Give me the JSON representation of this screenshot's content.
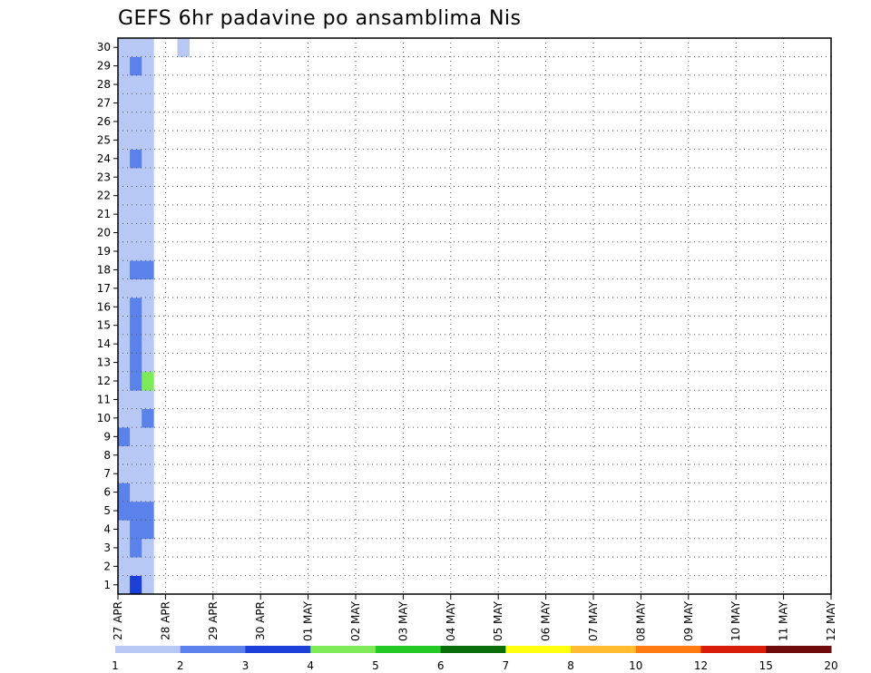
{
  "chart_data": {
    "type": "heatmap",
    "title": "GEFS 6hr padavine po ansamblima Nis",
    "xlabel": "",
    "ylabel": "",
    "x_tick_labels": [
      "27 APR",
      "28 APR",
      "29 APR",
      "30 APR",
      "01 MAY",
      "02 MAY",
      "03 MAY",
      "04 MAY",
      "05 MAY",
      "06 MAY",
      "07 MAY",
      "08 MAY",
      "09 MAY",
      "10 MAY",
      "11 MAY",
      "12 MAY"
    ],
    "y_tick_labels": [
      "1",
      "2",
      "3",
      "4",
      "5",
      "6",
      "7",
      "8",
      "9",
      "10",
      "11",
      "12",
      "13",
      "14",
      "15",
      "16",
      "17",
      "18",
      "19",
      "20",
      "21",
      "22",
      "23",
      "24",
      "25",
      "26",
      "27",
      "28",
      "29",
      "30"
    ],
    "time_steps_per_day": 4,
    "members": 30,
    "grid": true,
    "colorbar": {
      "boundaries": [
        1,
        2,
        3,
        4,
        5,
        6,
        7,
        8,
        10,
        12,
        15,
        20
      ],
      "colors": [
        "#b7c8f5",
        "#5a82ea",
        "#1c3fd8",
        "#7deb57",
        "#25c925",
        "#0a6e0a",
        "#ffff10",
        "#ffbc30",
        "#ff7a10",
        "#d81e0a",
        "#6e0a0a"
      ]
    },
    "cells": [
      [
        1,
        1,
        0
      ],
      [
        1,
        2,
        0
      ],
      [
        1,
        3,
        0
      ],
      [
        1,
        4,
        0
      ],
      [
        1,
        5,
        1
      ],
      [
        1,
        6,
        1
      ],
      [
        1,
        7,
        0
      ],
      [
        1,
        8,
        0
      ],
      [
        1,
        9,
        1
      ],
      [
        1,
        10,
        0
      ],
      [
        1,
        11,
        0
      ],
      [
        1,
        12,
        0
      ],
      [
        1,
        13,
        0
      ],
      [
        1,
        14,
        0
      ],
      [
        1,
        15,
        0
      ],
      [
        1,
        16,
        0
      ],
      [
        1,
        17,
        0
      ],
      [
        1,
        18,
        0
      ],
      [
        1,
        19,
        0
      ],
      [
        1,
        20,
        0
      ],
      [
        1,
        21,
        0
      ],
      [
        1,
        22,
        0
      ],
      [
        1,
        23,
        0
      ],
      [
        1,
        24,
        0
      ],
      [
        1,
        25,
        0
      ],
      [
        1,
        26,
        0
      ],
      [
        1,
        27,
        0
      ],
      [
        1,
        28,
        0
      ],
      [
        1,
        29,
        0
      ],
      [
        1,
        30,
        0
      ],
      [
        2,
        1,
        2
      ],
      [
        2,
        2,
        0
      ],
      [
        2,
        3,
        1
      ],
      [
        2,
        4,
        1
      ],
      [
        2,
        5,
        1
      ],
      [
        2,
        6,
        0
      ],
      [
        2,
        7,
        0
      ],
      [
        2,
        8,
        0
      ],
      [
        2,
        9,
        0
      ],
      [
        2,
        10,
        0
      ],
      [
        2,
        11,
        0
      ],
      [
        2,
        12,
        1
      ],
      [
        2,
        13,
        1
      ],
      [
        2,
        14,
        1
      ],
      [
        2,
        15,
        1
      ],
      [
        2,
        16,
        1
      ],
      [
        2,
        17,
        0
      ],
      [
        2,
        18,
        1
      ],
      [
        2,
        19,
        0
      ],
      [
        2,
        20,
        0
      ],
      [
        2,
        21,
        0
      ],
      [
        2,
        22,
        0
      ],
      [
        2,
        23,
        0
      ],
      [
        2,
        24,
        1
      ],
      [
        2,
        25,
        0
      ],
      [
        2,
        26,
        0
      ],
      [
        2,
        27,
        0
      ],
      [
        2,
        28,
        0
      ],
      [
        2,
        29,
        1
      ],
      [
        2,
        30,
        0
      ],
      [
        3,
        1,
        0
      ],
      [
        3,
        2,
        0
      ],
      [
        3,
        3,
        0
      ],
      [
        3,
        4,
        1
      ],
      [
        3,
        5,
        1
      ],
      [
        3,
        6,
        0
      ],
      [
        3,
        7,
        0
      ],
      [
        3,
        8,
        0
      ],
      [
        3,
        9,
        0
      ],
      [
        3,
        10,
        1
      ],
      [
        3,
        11,
        0
      ],
      [
        3,
        12,
        3
      ],
      [
        3,
        13,
        0
      ],
      [
        3,
        14,
        0
      ],
      [
        3,
        15,
        0
      ],
      [
        3,
        16,
        0
      ],
      [
        3,
        17,
        0
      ],
      [
        3,
        18,
        1
      ],
      [
        3,
        19,
        0
      ],
      [
        3,
        20,
        0
      ],
      [
        3,
        21,
        0
      ],
      [
        3,
        22,
        0
      ],
      [
        3,
        23,
        0
      ],
      [
        3,
        24,
        0
      ],
      [
        3,
        25,
        0
      ],
      [
        3,
        26,
        0
      ],
      [
        3,
        27,
        0
      ],
      [
        3,
        28,
        0
      ],
      [
        3,
        29,
        0
      ],
      [
        3,
        30,
        0
      ],
      [
        2,
        18,
        1
      ],
      [
        2,
        19,
        0
      ],
      [
        2,
        20,
        0
      ],
      [
        2,
        21,
        0
      ],
      [
        6,
        30,
        0
      ]
    ]
  }
}
